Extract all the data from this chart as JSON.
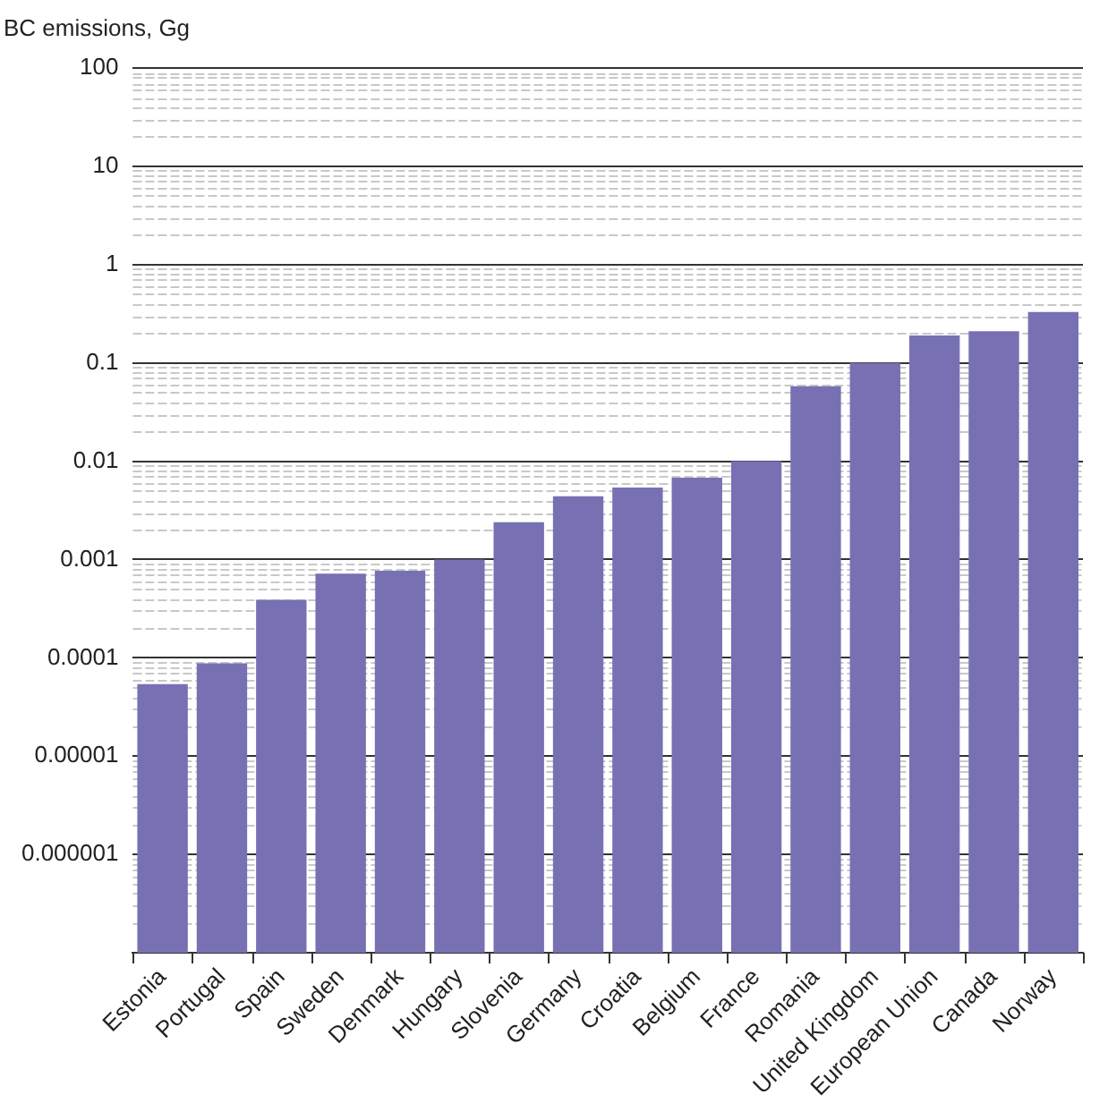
{
  "chart_data": {
    "type": "bar",
    "ylabel": "BC emissions, Gg",
    "categories": [
      "Estonia",
      "Portugal",
      "Spain",
      "Sweden",
      "Denmark",
      "Hungary",
      "Slovenia",
      "Germany",
      "Croatia",
      "Belgium",
      "France",
      "Romania",
      "United Kingdom",
      "European Union",
      "Canada",
      "Norway"
    ],
    "values": [
      5.4e-05,
      8.8e-05,
      0.00039,
      0.00072,
      0.00077,
      0.001,
      0.0024,
      0.0044,
      0.0054,
      0.0068,
      0.01,
      0.058,
      0.1,
      0.19,
      0.21,
      0.33
    ],
    "color": "#7771b3",
    "log": "y",
    "ylim": [
      1e-07,
      100
    ],
    "yticks": [
      {
        "value": 1e-06,
        "label": "0.000001"
      },
      {
        "value": 1e-05,
        "label": "0.00001"
      },
      {
        "value": 0.0001,
        "label": "0.0001"
      },
      {
        "value": 0.001,
        "label": "0.001"
      },
      {
        "value": 0.01,
        "label": "0.01"
      },
      {
        "value": 0.1,
        "label": "0.1"
      },
      {
        "value": 1,
        "label": "1"
      },
      {
        "value": 10,
        "label": "10"
      },
      {
        "value": 100,
        "label": "100"
      }
    ],
    "grid": "y",
    "legend": false
  }
}
